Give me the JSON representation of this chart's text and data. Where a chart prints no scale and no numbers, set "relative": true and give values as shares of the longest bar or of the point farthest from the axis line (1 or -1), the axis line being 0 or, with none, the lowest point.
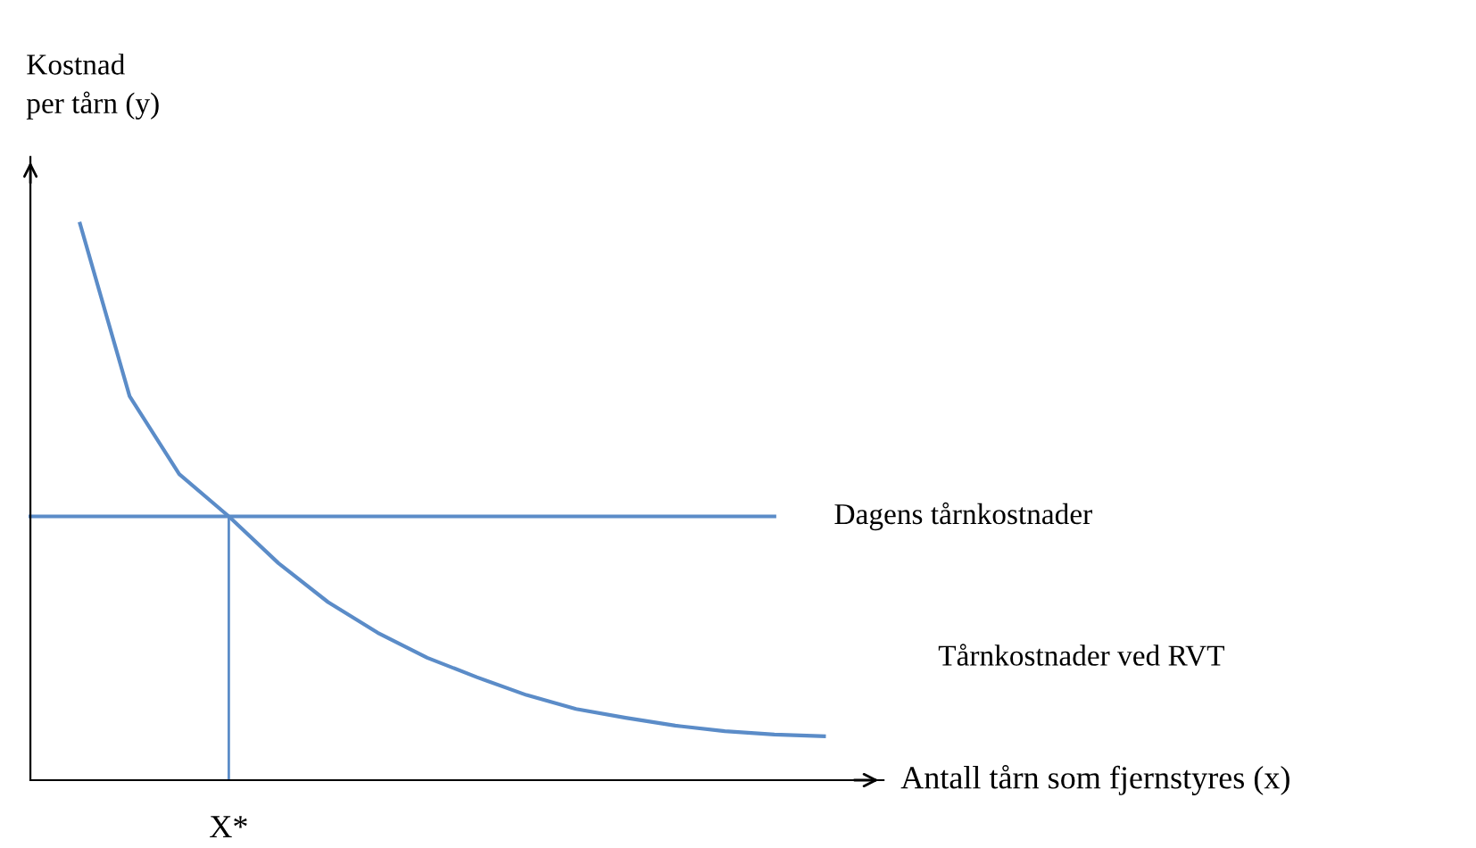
{
  "chart_data": {
    "type": "line",
    "relative": true,
    "xlabel": "Antall tårn som fjernstyres (x)",
    "ylabel": "Kostnad\nper tårn (y)",
    "categories": [
      null,
      null,
      null,
      null,
      null,
      null,
      null,
      null,
      null,
      null,
      null,
      null,
      null,
      null,
      null,
      null,
      null
    ],
    "annotations": [
      "X*"
    ],
    "marker": "none",
    "line_style": "solid",
    "series": [
      {
        "name": "Tårnkostnader ved RVT",
        "color": "#5b8cc8",
        "values": [
          null,
          1.0,
          0.69,
          0.55,
          0.474,
          0.39,
          0.32,
          0.265,
          0.22,
          0.185,
          0.153,
          0.128,
          0.112,
          0.098,
          0.088,
          0.082,
          0.079
        ]
      },
      {
        "name": "Dagens tårnkostnader",
        "color": "#5b8cc8",
        "values": [
          0.474,
          0.474,
          0.474,
          0.474,
          0.474,
          0.474,
          0.474,
          0.474,
          0.474,
          0.474,
          0.474,
          0.474,
          0.474,
          0.474,
          0.474,
          0.474,
          null
        ]
      }
    ]
  }
}
